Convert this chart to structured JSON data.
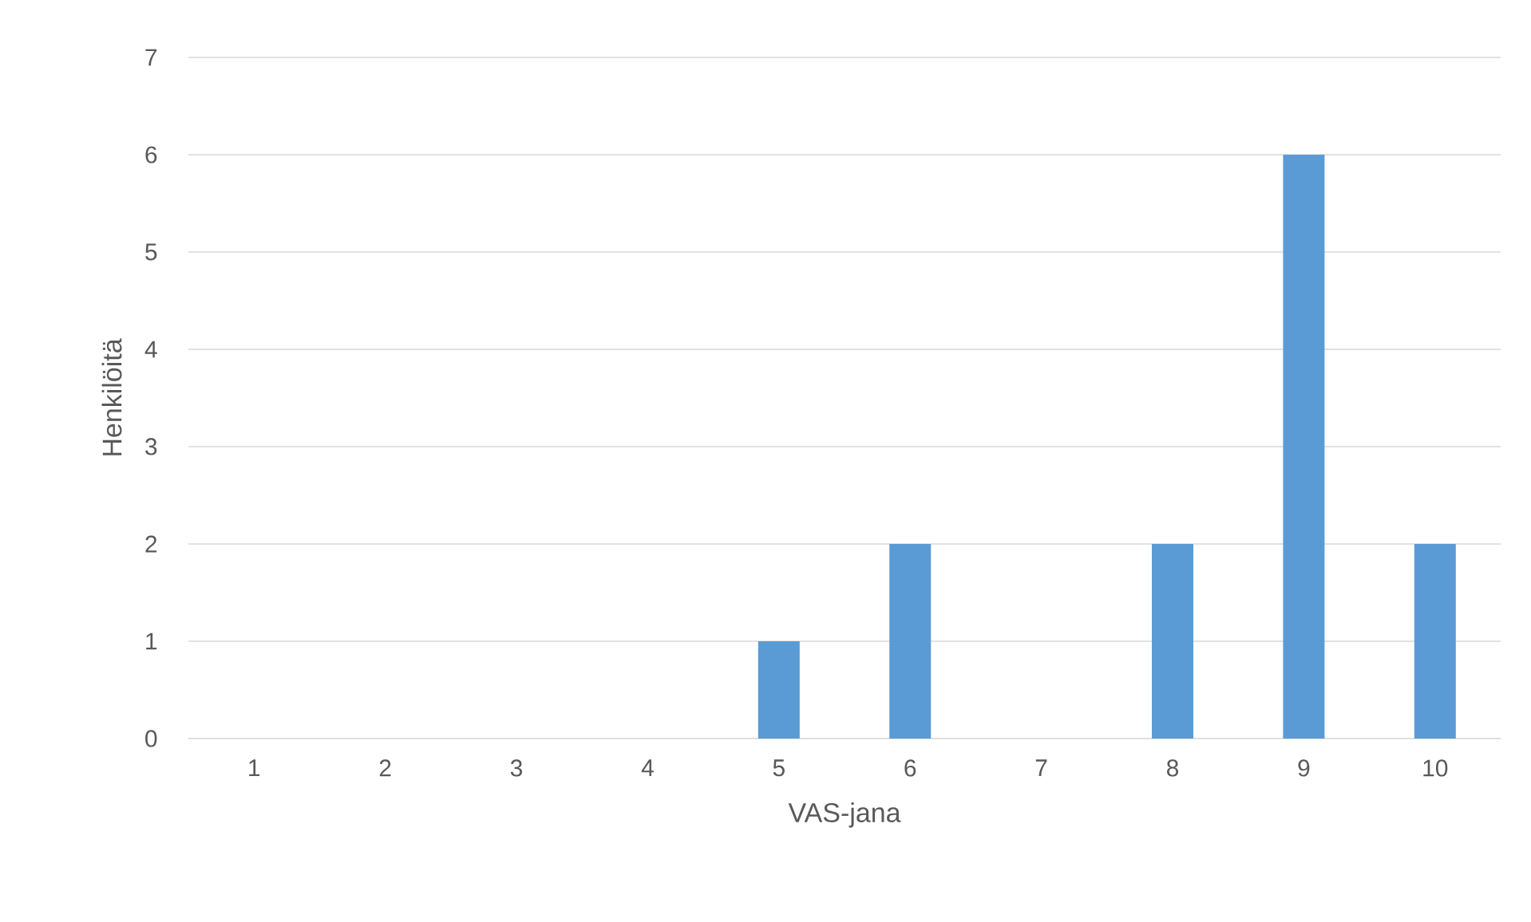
{
  "chart_data": {
    "type": "bar",
    "xlabel": "VAS-jana",
    "ylabel": "Henkilöitä",
    "categories": [
      "1",
      "2",
      "3",
      "4",
      "5",
      "6",
      "7",
      "8",
      "9",
      "10"
    ],
    "values": [
      0,
      0,
      0,
      0,
      1,
      2,
      0,
      2,
      6,
      2
    ],
    "color": "#5b9bd5",
    "ylim": [
      0,
      7
    ],
    "yticks": [
      0,
      1,
      2,
      3,
      4,
      5,
      6,
      7
    ],
    "grid": "y"
  }
}
